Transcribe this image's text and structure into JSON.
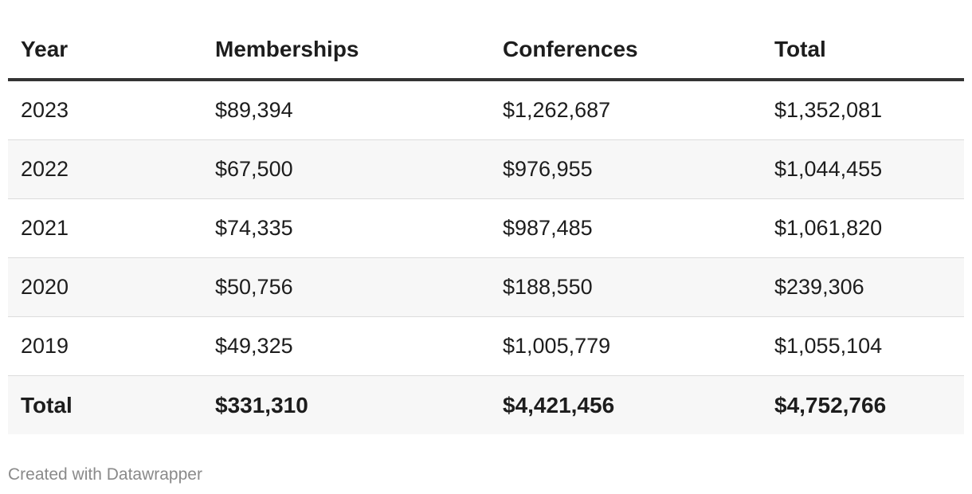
{
  "chart_data": {
    "type": "table",
    "columns": [
      "Year",
      "Memberships",
      "Conferences",
      "Total"
    ],
    "rows": [
      [
        "2023",
        "$89,394",
        "$1,262,687",
        "$1,352,081"
      ],
      [
        "2022",
        "$67,500",
        "$976,955",
        "$1,044,455"
      ],
      [
        "2021",
        "$74,335",
        "$987,485",
        "$1,061,820"
      ],
      [
        "2020",
        "$50,756",
        "$188,550",
        "$239,306"
      ],
      [
        "2019",
        "$49,325",
        "$1,005,779",
        "$1,055,104"
      ]
    ],
    "total_row": [
      "Total",
      "$331,310",
      "$4,421,456",
      "$4,752,766"
    ],
    "values": {
      "2023": {
        "memberships": 89394,
        "conferences": 1262687,
        "total": 1352081
      },
      "2022": {
        "memberships": 67500,
        "conferences": 976955,
        "total": 1044455
      },
      "2021": {
        "memberships": 74335,
        "conferences": 987485,
        "total": 1061820
      },
      "2020": {
        "memberships": 50756,
        "conferences": 188550,
        "total": 239306
      },
      "2019": {
        "memberships": 49325,
        "conferences": 1005779,
        "total": 1055104
      }
    },
    "totals": {
      "memberships": 331310,
      "conferences": 4421456,
      "total": 4752766
    }
  },
  "footer": "Created with Datawrapper"
}
